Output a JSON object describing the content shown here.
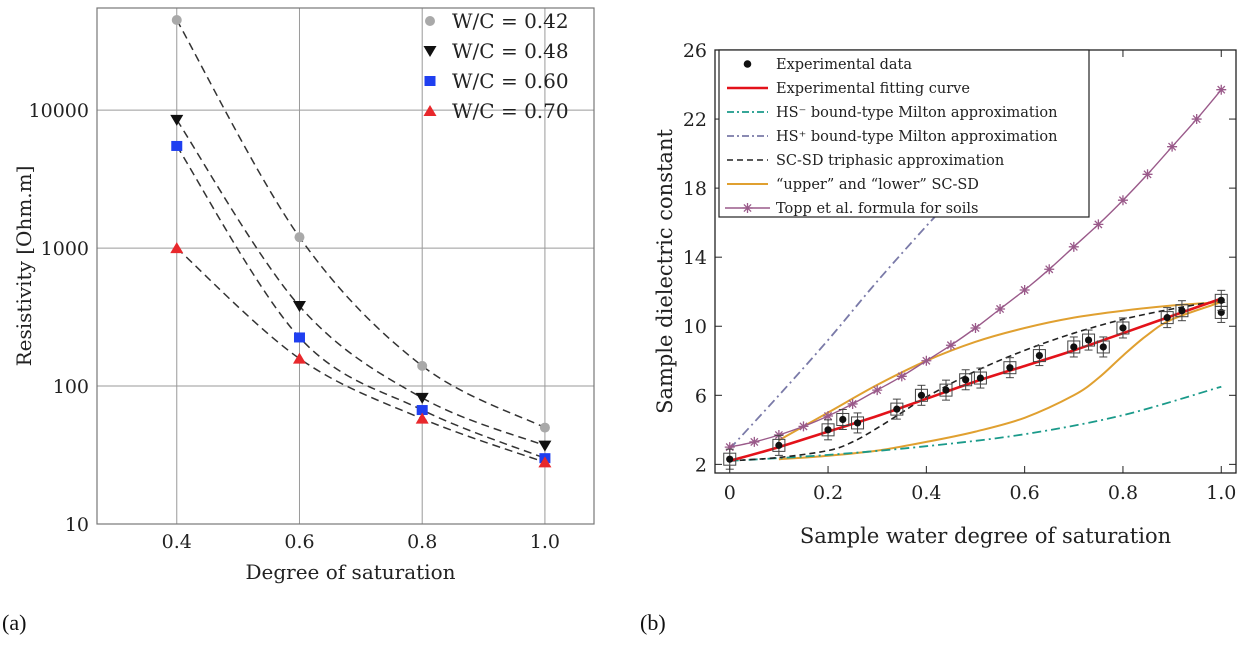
{
  "panel_labels": {
    "a": "(a)",
    "b": "(b)"
  },
  "colors": {
    "wc042": "#a9a9a9",
    "wc048": "#111111",
    "wc060": "#1f3ff0",
    "wc070": "#e8282c",
    "fit": "#e3121a",
    "hs_minus": "#1a9a8a",
    "hs_plus": "#7a7aa8",
    "scsd": "#222222",
    "upper_lower": "#e0a030",
    "topp": "#9a5a8a",
    "grid_a": "#9a9a9a",
    "dash": "#333333"
  },
  "chart_data": [
    {
      "type": "scatter",
      "panel": "(a)",
      "xlabel": "Degree of saturation",
      "ylabel": "Resistivity [Ohm.m]",
      "x_ticks": [
        "0.4",
        "0.6",
        "0.8",
        "1.0"
      ],
      "y_ticks": [
        "10",
        "100",
        "1000",
        "10000"
      ],
      "xlim": [
        0.27,
        1.08
      ],
      "ylim": [
        10,
        55000
      ],
      "yscale": "log",
      "grid": true,
      "legend_position": "top-right",
      "series": [
        {
          "name": "W/C = 0.42",
          "marker": "circle",
          "x": [
            0.4,
            0.6,
            0.8,
            1.0
          ],
          "y": [
            45000,
            1200,
            140,
            50
          ]
        },
        {
          "name": "W/C = 0.48",
          "marker": "triangle-down",
          "x": [
            0.4,
            0.6,
            0.8,
            1.0
          ],
          "y": [
            8500,
            380,
            82,
            37
          ]
        },
        {
          "name": "W/C = 0.60",
          "marker": "square",
          "x": [
            0.4,
            0.6,
            0.8,
            1.0
          ],
          "y": [
            5500,
            225,
            67,
            30
          ]
        },
        {
          "name": "W/C = 0.70",
          "marker": "triangle-up",
          "x": [
            0.4,
            0.6,
            0.8,
            1.0
          ],
          "y": [
            1000,
            158,
            58,
            28
          ]
        }
      ]
    },
    {
      "type": "line",
      "panel": "(b)",
      "xlabel": "Sample water degree of saturation",
      "ylabel": "Sample dielectric constant",
      "x_ticks": [
        "0",
        "0.2",
        "0.4",
        "0.6",
        "0.8",
        "1.0"
      ],
      "y_ticks": [
        "2",
        "6",
        "10",
        "14",
        "18",
        "22",
        "26"
      ],
      "xlim": [
        -0.03,
        1.03
      ],
      "ylim": [
        1.5,
        26
      ],
      "grid": false,
      "legend_position": "top-left",
      "legend": [
        "Experimental data",
        "Experimental fitting curve",
        "HS⁻ bound-type Milton approximation",
        "HS⁺ bound-type Milton approximation",
        "SC-SD triphasic approximation",
        "“upper” and “lower” SC-SD",
        "Topp et al. formula for soils"
      ],
      "experimental_data": {
        "x": [
          0.0,
          0.1,
          0.2,
          0.23,
          0.26,
          0.34,
          0.39,
          0.44,
          0.48,
          0.51,
          0.57,
          0.63,
          0.7,
          0.73,
          0.76,
          0.8,
          0.89,
          0.92,
          1.0,
          1.0
        ],
        "y": [
          2.3,
          3.1,
          4.0,
          4.6,
          4.4,
          5.2,
          6.0,
          6.3,
          6.9,
          7.0,
          7.6,
          8.3,
          8.8,
          9.2,
          8.8,
          9.9,
          10.5,
          10.9,
          10.8,
          11.5
        ]
      },
      "fitting_curve": {
        "x": [
          0.0,
          0.1,
          0.2,
          0.3,
          0.4,
          0.5,
          0.6,
          0.7,
          0.8,
          0.9,
          1.0
        ],
        "y": [
          2.2,
          3.0,
          3.9,
          4.8,
          5.8,
          6.8,
          7.7,
          8.6,
          9.6,
          10.6,
          11.6
        ]
      },
      "hs_minus": {
        "x": [
          0.0,
          0.2,
          0.4,
          0.6,
          0.8,
          1.0
        ],
        "y": [
          2.2,
          2.55,
          3.05,
          3.75,
          4.85,
          6.5
        ]
      },
      "hs_plus": {
        "x": [
          0.0,
          0.1,
          0.2,
          0.3,
          0.4,
          0.45
        ],
        "y": [
          2.9,
          6.0,
          9.2,
          12.6,
          15.8,
          17.3
        ]
      },
      "scsd_triphasic": {
        "x": [
          0.0,
          0.1,
          0.2,
          0.25,
          0.3,
          0.35,
          0.4,
          0.5,
          0.6,
          0.7,
          0.8,
          0.9,
          1.0
        ],
        "y": [
          2.2,
          2.4,
          2.8,
          3.3,
          4.1,
          5.0,
          5.9,
          7.4,
          8.6,
          9.6,
          10.4,
          11.0,
          11.5
        ]
      },
      "upper_scsd": {
        "x": [
          0.1,
          0.2,
          0.3,
          0.4,
          0.5,
          0.6,
          0.7,
          0.8,
          0.9,
          1.0
        ],
        "y": [
          3.4,
          5.0,
          6.6,
          8.0,
          9.1,
          9.9,
          10.5,
          10.9,
          11.2,
          11.4
        ]
      },
      "lower_scsd": {
        "x": [
          0.1,
          0.2,
          0.3,
          0.4,
          0.5,
          0.6,
          0.7,
          0.75,
          0.8,
          0.85,
          0.9,
          1.0
        ],
        "y": [
          2.3,
          2.5,
          2.8,
          3.3,
          3.9,
          4.7,
          6.0,
          7.0,
          8.3,
          9.5,
          10.4,
          11.4
        ]
      },
      "topp": {
        "x": [
          0.0,
          0.05,
          0.1,
          0.15,
          0.2,
          0.25,
          0.3,
          0.35,
          0.4,
          0.45,
          0.5,
          0.55,
          0.6,
          0.65,
          0.7,
          0.75,
          0.8,
          0.85,
          0.9,
          0.95,
          1.0
        ],
        "y": [
          3.0,
          3.3,
          3.7,
          4.2,
          4.8,
          5.5,
          6.3,
          7.1,
          8.0,
          8.9,
          9.9,
          11.0,
          12.1,
          13.3,
          14.6,
          15.9,
          17.3,
          18.8,
          20.4,
          22.0,
          23.7
        ]
      }
    }
  ]
}
